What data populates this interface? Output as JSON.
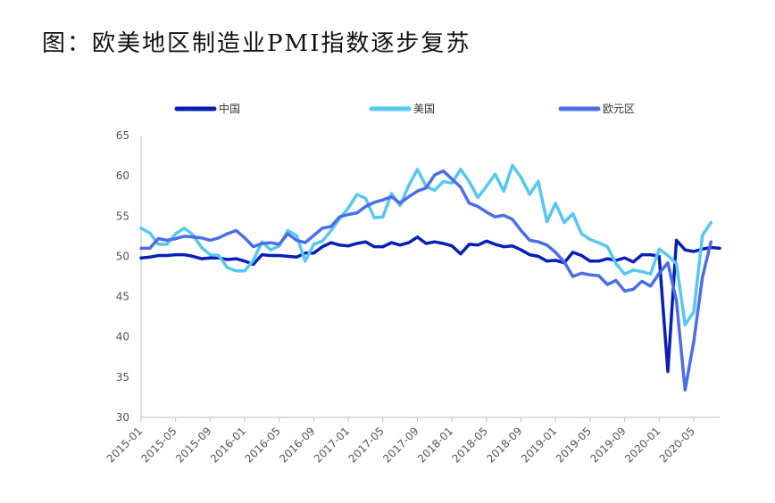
{
  "title": "图：欧美地区制造业PMI指数逐步复苏",
  "chart_data": {
    "type": "line",
    "ylim": [
      30,
      65
    ],
    "yticks": [
      30,
      35,
      40,
      45,
      50,
      55,
      60,
      65
    ],
    "grid": false,
    "legend_position": "top",
    "x_tick_labels": [
      "2015-01",
      "2015-05",
      "2015-09",
      "2016-01",
      "2016-05",
      "2016-09",
      "2017-01",
      "2017-05",
      "2017-09",
      "2018-01",
      "2018-05",
      "2018-09",
      "2019-01",
      "2019-05",
      "2019-09",
      "2020-01",
      "2020-05"
    ],
    "x_start": "2015-01",
    "series": [
      {
        "name": "中国",
        "color": "#0a1fb5",
        "values": [
          49.8,
          49.9,
          50.1,
          50.1,
          50.2,
          50.2,
          50.0,
          49.7,
          49.8,
          49.8,
          49.6,
          49.7,
          49.4,
          49.0,
          50.2,
          50.1,
          50.1,
          50.0,
          49.9,
          50.4,
          50.4,
          51.2,
          51.7,
          51.4,
          51.3,
          51.6,
          51.8,
          51.2,
          51.2,
          51.7,
          51.4,
          51.7,
          52.4,
          51.6,
          51.8,
          51.6,
          51.3,
          50.3,
          51.5,
          51.4,
          51.9,
          51.5,
          51.2,
          51.3,
          50.8,
          50.2,
          50.0,
          49.4,
          49.5,
          49.2,
          50.5,
          50.1,
          49.4,
          49.4,
          49.7,
          49.5,
          49.8,
          49.3,
          50.2,
          50.2,
          50.0,
          35.7,
          52.0,
          50.8,
          50.6,
          50.9,
          51.1,
          51.0
        ]
      },
      {
        "name": "美国",
        "color": "#56c8f2",
        "values": [
          53.5,
          52.9,
          51.5,
          51.5,
          52.8,
          53.5,
          52.7,
          51.1,
          50.2,
          50.1,
          48.6,
          48.2,
          48.2,
          49.5,
          51.8,
          50.8,
          51.3,
          53.2,
          52.6,
          49.4,
          51.5,
          51.9,
          53.2,
          54.7,
          56.0,
          57.7,
          57.2,
          54.8,
          54.9,
          57.8,
          56.3,
          58.8,
          60.8,
          58.7,
          58.2,
          59.3,
          59.1,
          60.8,
          59.3,
          57.3,
          58.7,
          60.2,
          58.1,
          61.3,
          59.8,
          57.7,
          59.3,
          54.3,
          56.6,
          54.2,
          55.3,
          52.8,
          52.1,
          51.7,
          51.2,
          49.1,
          47.8,
          48.3,
          48.1,
          47.8,
          50.9,
          50.1,
          49.1,
          41.5,
          43.1,
          52.6,
          54.2
        ]
      },
      {
        "name": "欧元区",
        "color": "#4a6ee8",
        "values": [
          51.0,
          51.0,
          52.2,
          52.0,
          52.2,
          52.5,
          52.4,
          52.3,
          52.0,
          52.3,
          52.8,
          53.2,
          52.3,
          51.2,
          51.6,
          51.7,
          51.5,
          52.8,
          52.0,
          51.7,
          52.6,
          53.5,
          53.7,
          54.9,
          55.2,
          55.4,
          56.2,
          56.7,
          57.0,
          57.4,
          56.6,
          57.4,
          58.1,
          58.5,
          60.1,
          60.6,
          59.6,
          58.6,
          56.6,
          56.2,
          55.5,
          54.9,
          55.1,
          54.6,
          53.2,
          52.0,
          51.8,
          51.4,
          50.5,
          49.3,
          47.5,
          47.9,
          47.7,
          47.6,
          46.5,
          47.0,
          45.7,
          45.9,
          46.9,
          46.3,
          47.9,
          49.2,
          44.5,
          33.4,
          39.4,
          47.4,
          51.8
        ]
      }
    ]
  }
}
